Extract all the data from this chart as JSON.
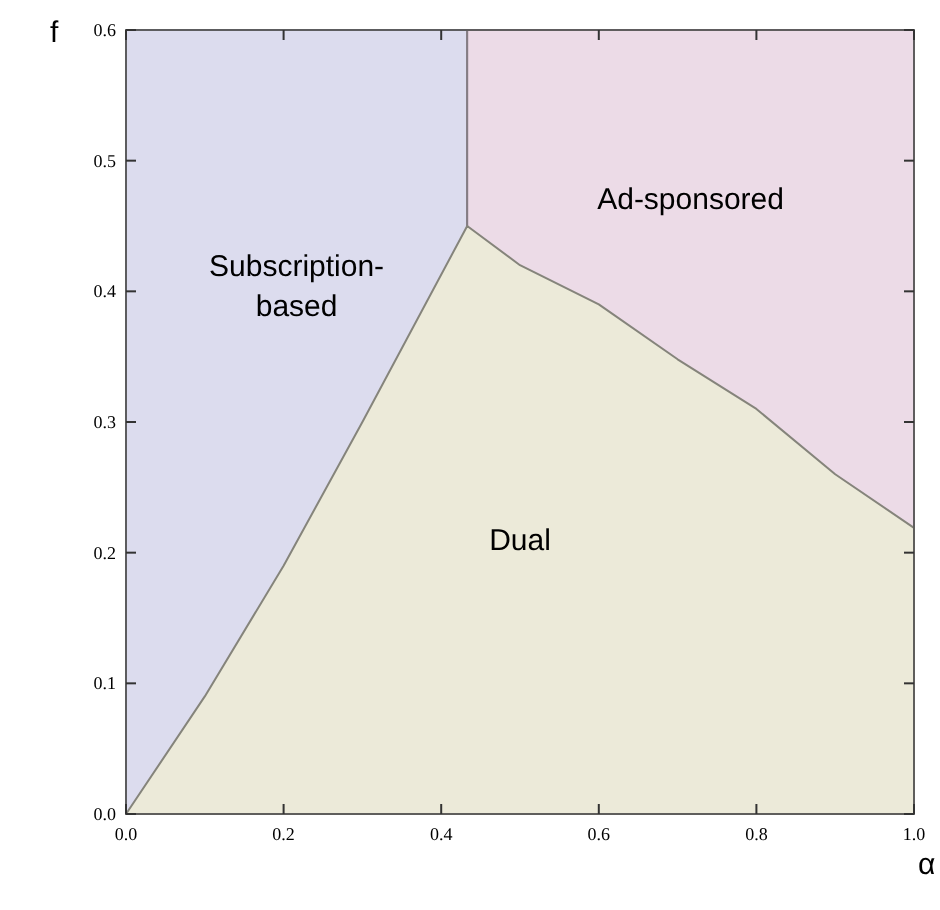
{
  "chart_data": {
    "type": "area",
    "xlabel": "α",
    "ylabel": "f",
    "xlim": [
      0,
      1
    ],
    "ylim": [
      0,
      0.6
    ],
    "xticks": [
      {
        "value": 0,
        "label": "0.0"
      },
      0.2,
      0.4,
      0.6,
      0.8,
      {
        "value": 1,
        "label": "1.0"
      }
    ],
    "yticks": [
      {
        "value": 0,
        "label": "0.0"
      },
      0.1,
      0.2,
      0.3,
      0.4,
      0.5,
      0.6
    ],
    "series": [
      {
        "name": "Subscription-based",
        "color": "#dcdcee",
        "x": [
          0,
          0.433
        ],
        "values": [
          0.6,
          0.6
        ]
      },
      {
        "name": "Ad-sponsored",
        "color": "#ecdbe7",
        "x": [
          0.433,
          1.0
        ],
        "values": [
          0.6,
          0.6
        ]
      },
      {
        "name": "Dual",
        "color": "#ecead9",
        "x": [
          0,
          0.1,
          0.2,
          0.3,
          0.433,
          0.5,
          0.6,
          0.7,
          0.8,
          0.9,
          1.0
        ],
        "values": [
          0,
          0.09,
          0.19,
          0.3,
          0.45,
          0.42,
          0.39,
          0.348,
          0.31,
          0.26,
          0.219
        ]
      }
    ]
  }
}
